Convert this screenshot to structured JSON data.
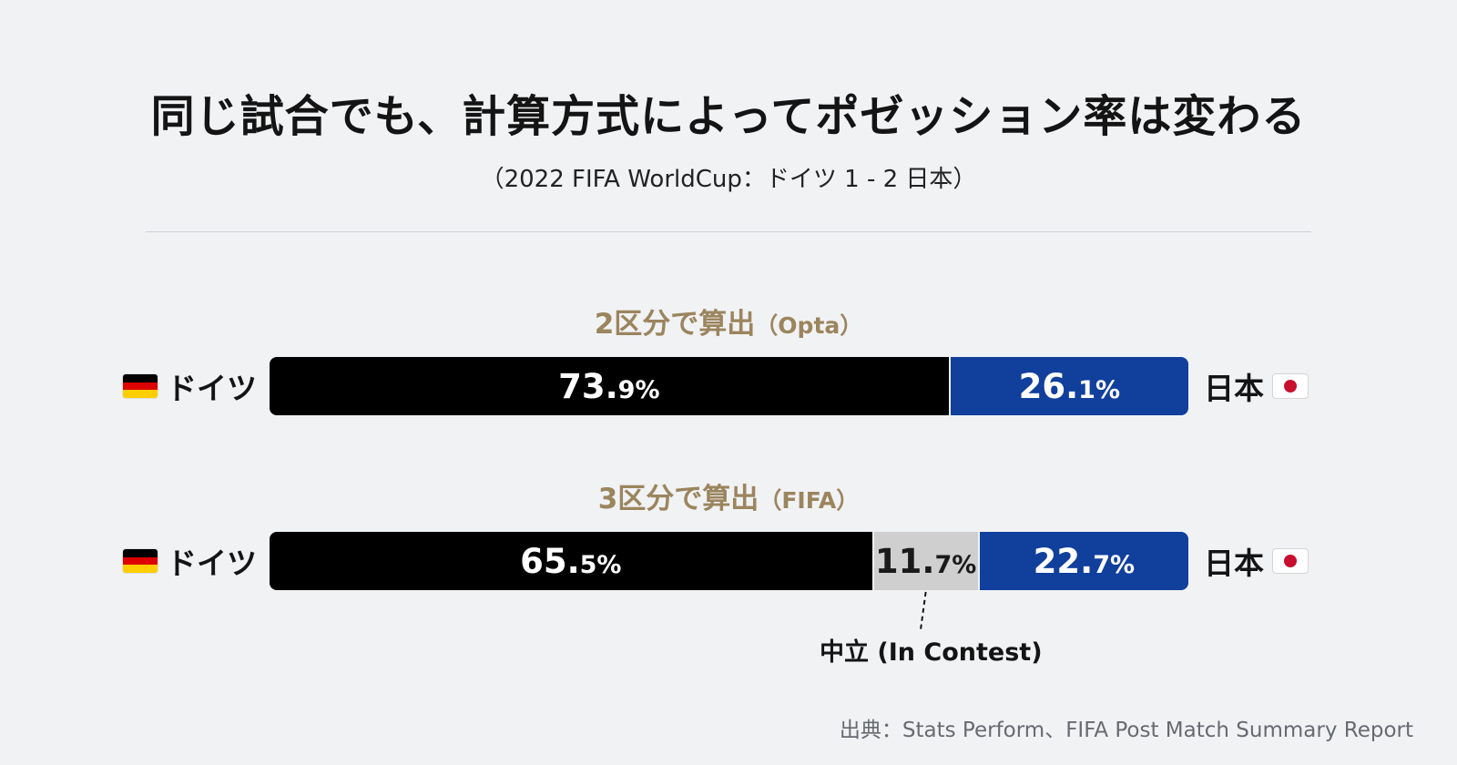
{
  "chart_data": {
    "type": "bar",
    "title": "同じ試合でも、計算方式によってポゼッション率は変わる",
    "subtitle": "（2022 FIFA WorldCup：ドイツ 1 - 2 日本）",
    "team_left": "ドイツ",
    "team_right": "日本",
    "series": [
      {
        "name": "ドイツ",
        "color": "#000000"
      },
      {
        "name": "中立 (In Contest)",
        "color": "#cfcfcf"
      },
      {
        "name": "日本",
        "color": "#113f9c"
      }
    ],
    "bars": [
      {
        "label_main": "2区分で算出",
        "label_paren": "（Opta）",
        "segments": [
          {
            "team": "ドイツ",
            "value": 73.9,
            "int_text": "73.",
            "dec_text": "9%",
            "color": "#000000"
          },
          {
            "team": "日本",
            "value": 26.1,
            "int_text": "26.",
            "dec_text": "1%",
            "color": "#113f9c"
          }
        ]
      },
      {
        "label_main": "3区分で算出",
        "label_paren": "（FIFA）",
        "segments": [
          {
            "team": "ドイツ",
            "value": 65.5,
            "int_text": "65.",
            "dec_text": "5%",
            "color": "#000000"
          },
          {
            "team": "中立",
            "value": 11.7,
            "int_text": "11.",
            "dec_text": "7%",
            "color": "#cfcfcf"
          },
          {
            "team": "日本",
            "value": 22.7,
            "int_text": "22.",
            "dec_text": "7%",
            "color": "#113f9c"
          }
        ]
      }
    ],
    "annotation": "中立 (In Contest)",
    "source": "出典：Stats Perform、FIFA Post Match Summary Report",
    "legend": "none",
    "grid": false,
    "xlim": [
      0,
      100
    ]
  },
  "flags": {
    "left_icon": "germany-flag-icon",
    "right_icon": "japan-flag-icon"
  }
}
